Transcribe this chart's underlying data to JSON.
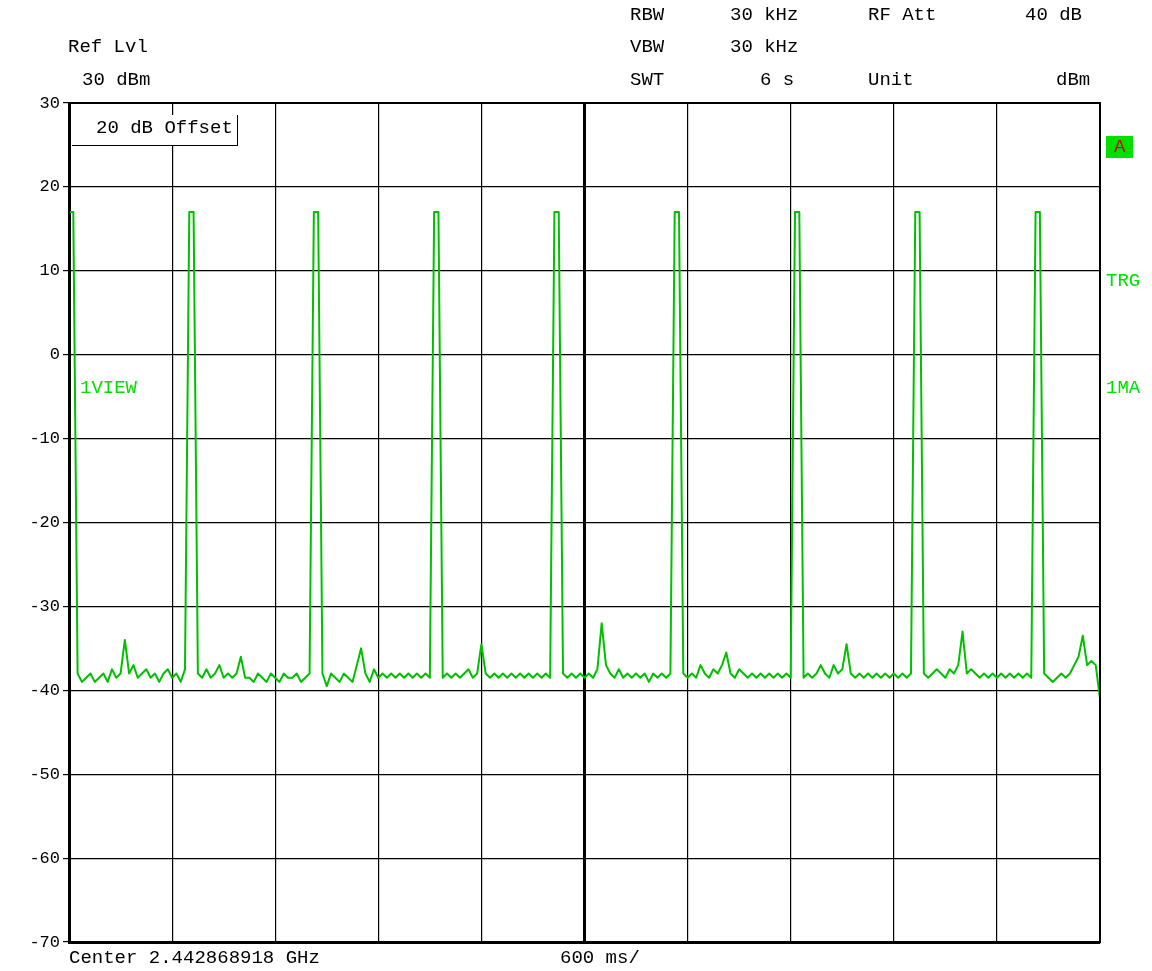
{
  "chart_data": {
    "type": "line",
    "annotations": [
      "Ref Lvl",
      "30 dBm",
      "RBW",
      "30 kHz",
      "VBW",
      "30 kHz",
      "SWT",
      "6 s",
      "RF Att",
      "40 dB",
      "Unit",
      "dBm",
      "20 dB Offset",
      "1VIEW",
      "A",
      "TRG",
      "1MA",
      "Center 2.442868918 GHz",
      "600 ms/"
    ],
    "categories": [
      null,
      null,
      null,
      null,
      null,
      null,
      null,
      null,
      null,
      null,
      null,
      null,
      null,
      null,
      null,
      null,
      null,
      null,
      null,
      null,
      null,
      null,
      null,
      null,
      null,
      null,
      null,
      null,
      null,
      null,
      null,
      null,
      null,
      null,
      null,
      null,
      null,
      null,
      null,
      null,
      null,
      null,
      null,
      null,
      null,
      null,
      null,
      null,
      null,
      null,
      null,
      null,
      null,
      null,
      null,
      null,
      null,
      null,
      null,
      null,
      null,
      null,
      null,
      null,
      null,
      null,
      null,
      null,
      null,
      null,
      null,
      null,
      null,
      null,
      null,
      null,
      null,
      null,
      null,
      null,
      null,
      null,
      null,
      null,
      null,
      null,
      null,
      null,
      null,
      null,
      null,
      null,
      null,
      null,
      null,
      null,
      null,
      null,
      null,
      null,
      null,
      null,
      null,
      null,
      null,
      null,
      null,
      null,
      null,
      null,
      null,
      null,
      null,
      null,
      null,
      null,
      null,
      null,
      null,
      null,
      null,
      null,
      null,
      null,
      null,
      null,
      null,
      null,
      null,
      null,
      null,
      null,
      null,
      null,
      null,
      null,
      null,
      null,
      null,
      null,
      null,
      null,
      null,
      null,
      null,
      null,
      null,
      null,
      null,
      null,
      null,
      null,
      null,
      null,
      null,
      null,
      null,
      null,
      null,
      null,
      null,
      null,
      null,
      null,
      null,
      null,
      null,
      null,
      null,
      null,
      null,
      null,
      null,
      null,
      null,
      null,
      null,
      null,
      null,
      null,
      null,
      null,
      null,
      null,
      null,
      null,
      null,
      null,
      null,
      null,
      null,
      null,
      null,
      null,
      null,
      null,
      null,
      null,
      null,
      null,
      null,
      null,
      null,
      null,
      null,
      null,
      null,
      null,
      null,
      null,
      null,
      null,
      null,
      null,
      null,
      null,
      null,
      null,
      null,
      null,
      null,
      null,
      null,
      null,
      null,
      null,
      null,
      null,
      null,
      null,
      null,
      null,
      null,
      null,
      null,
      null,
      null,
      null,
      null,
      null,
      null
    ],
    "series": [
      {
        "color": "#00c000",
        "values": [
          17,
          17,
          -38,
          -39,
          -38.5,
          -38,
          -39,
          -38.5,
          -38,
          -39,
          -37.5,
          -38.5,
          -38,
          -34,
          -38,
          -37,
          -38.5,
          -38,
          -37.5,
          -38.5,
          -38,
          -39,
          -38,
          -37.5,
          -38.5,
          -38,
          -39,
          -37.5,
          17,
          17,
          -38,
          -38.5,
          -37.5,
          -38.5,
          -38,
          -37,
          -38.5,
          -38,
          -38.5,
          -38,
          -36,
          -38.5,
          -38.5,
          -39,
          -38,
          -38.5,
          -39,
          -38,
          -38.5,
          -39,
          -38,
          -38.5,
          -38.5,
          -38,
          -39,
          -38.5,
          -38,
          17,
          17,
          -38,
          -39.5,
          -38,
          -38.5,
          -39,
          -38,
          -38.5,
          -39,
          -37,
          -35,
          -38,
          -39,
          -37.5,
          -38.5,
          -38,
          -38.5,
          -38,
          -38.5,
          -38,
          -38.5,
          -38,
          -38.5,
          -38,
          -38.5,
          -38,
          -38.5,
          17,
          17,
          -38.5,
          -38,
          -38.5,
          -38,
          -38.5,
          -38,
          -37.5,
          -38.5,
          -38,
          -34.5,
          -38,
          -38.5,
          -38,
          -38.5,
          -38,
          -38.5,
          -38,
          -38.5,
          -38,
          -38.5,
          -38,
          -38.5,
          -38,
          -38.5,
          -38,
          -38.5,
          17,
          17,
          -38,
          -38.5,
          -38,
          -38.5,
          -38,
          -38.5,
          -38,
          -38.5,
          -37.5,
          -32,
          -37,
          -38,
          -38.5,
          -37.5,
          -38.5,
          -38,
          -38.5,
          -38,
          -38.5,
          -38,
          -39,
          -38,
          -38.5,
          -38,
          -38.5,
          -38,
          17,
          17,
          -38,
          -38.5,
          -38,
          -38.5,
          -37,
          -38,
          -38.5,
          -37.5,
          -38,
          -37,
          -35.5,
          -38,
          -38.5,
          -37.5,
          -38,
          -38.5,
          -38,
          -38.5,
          -38,
          -38.5,
          -38,
          -38.5,
          -38,
          -38.5,
          -38,
          -38.5,
          17,
          17,
          -38.5,
          -38,
          -38.5,
          -38,
          -37,
          -38,
          -38.5,
          -37,
          -38,
          -37.5,
          -34.5,
          -38,
          -38.5,
          -38,
          -38.5,
          -38,
          -38.5,
          -38,
          -38.5,
          -38,
          -38.5,
          -38,
          -38.5,
          -38,
          -38.5,
          -38,
          17,
          17,
          -38,
          -38.5,
          -38,
          -37.5,
          -38,
          -38.5,
          -37.5,
          -38,
          -37,
          -33,
          -38,
          -37.5,
          -38,
          -38.5,
          -38,
          -38.5,
          -38,
          -38.5,
          -38,
          -38.5,
          -38,
          -38.5,
          -38,
          -38.5,
          -38,
          -38.5,
          17,
          17,
          -38,
          -38.5,
          -39,
          -38.5,
          -38,
          -38.5,
          -38,
          -37,
          -36,
          -33.5,
          -37,
          -36.5,
          -37,
          -41
        ]
      }
    ],
    "ylim": [
      -70,
      30
    ],
    "yticks": [
      -70,
      -60,
      -50,
      -40,
      -30,
      -20,
      -10,
      0,
      10,
      20,
      30
    ],
    "tick_labels": "y",
    "grid": true,
    "legend": false,
    "marker": "none",
    "line_style": "solid"
  }
}
